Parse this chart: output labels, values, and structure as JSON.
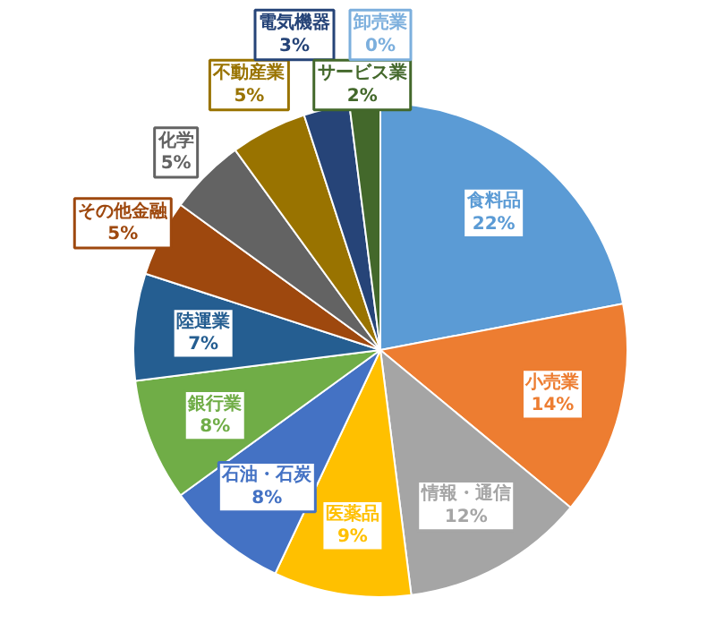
{
  "chart_data": {
    "type": "pie",
    "categories": [
      "食料品",
      "小売業",
      "情報・通信",
      "医薬品",
      "石油・石炭",
      "銀行業",
      "陸運業",
      "その他金融",
      "化学",
      "不動産業",
      "電気機器",
      "サービス業",
      "卸売業"
    ],
    "values": [
      22,
      14,
      12,
      9,
      8,
      8,
      7,
      5,
      5,
      5,
      3,
      2,
      0
    ],
    "value_labels": [
      "22%",
      "14%",
      "12%",
      "9%",
      "8%",
      "8%",
      "7%",
      "5%",
      "5%",
      "5%",
      "3%",
      "2%",
      "0%"
    ],
    "colors": [
      "#5b9bd5",
      "#ed7d31",
      "#a5a5a5",
      "#ffc000",
      "#4472c4",
      "#70ad47",
      "#255e91",
      "#9e480e",
      "#636363",
      "#997300",
      "#264478",
      "#43682b",
      "#7cafdd"
    ]
  }
}
